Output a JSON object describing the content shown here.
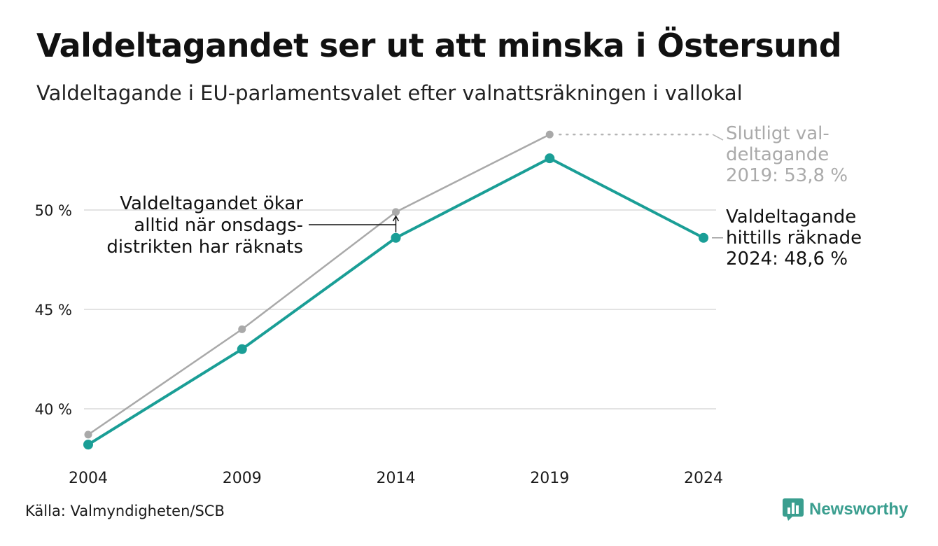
{
  "header": {
    "title": "Valdeltagandet ser ut att minska i Östersund",
    "subtitle": "Valdeltagande i EU-parlamentsvalet efter valnattsräkningen i vallokal"
  },
  "footer": {
    "source": "Källa: Valmyndigheten/SCB",
    "logo_text": "Newsworthy"
  },
  "colors": {
    "teal": "#1a9e96",
    "gray": "#a9a9a9",
    "grid": "#e3e3e3",
    "logo": "#3a9e8f"
  },
  "chart_data": {
    "type": "line",
    "x": [
      "2004",
      "2009",
      "2014",
      "2019",
      "2024"
    ],
    "ylim": [
      37.5,
      54
    ],
    "yticks": [
      40,
      45,
      50
    ],
    "ytick_labels": [
      "40 %",
      "45 %",
      "50 %"
    ],
    "grid": true,
    "series": [
      {
        "key": "final",
        "values": [
          38.7,
          44.0,
          49.9,
          53.8,
          null
        ],
        "color": "#a9a9a9"
      },
      {
        "key": "counted",
        "values": [
          38.2,
          43.0,
          48.6,
          52.6,
          48.6
        ],
        "color": "#1a9e96"
      }
    ],
    "annotations": {
      "final_label": [
        "Slutligt val-",
        "deltagande",
        "2019: 53,8 %"
      ],
      "counted_label": [
        "Valdeltagande",
        "hittills räknade",
        "2024: 48,6 %"
      ],
      "note": [
        "Valdeltagandet ökar",
        "alltid när onsdags-",
        "distrikten har räknats"
      ]
    }
  }
}
